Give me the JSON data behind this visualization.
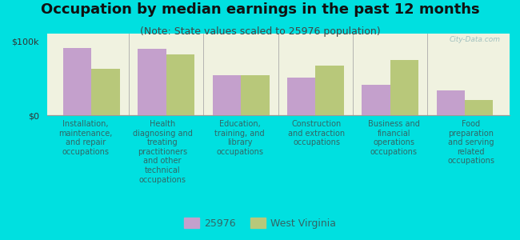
{
  "title": "Occupation by median earnings in the past 12 months",
  "subtitle": "(Note: State values scaled to 25976 population)",
  "background_color": "#00e0e0",
  "plot_bg_color": "#f0f2e0",
  "categories": [
    "Installation,\nmaintenance,\nand repair\noccupations",
    "Health\ndiagnosing and\ntreating\npractitioners\nand other\ntechnical\noccupations",
    "Education,\ntraining, and\nlibrary\noccupations",
    "Construction\nand extraction\noccupations",
    "Business and\nfinancial\noperations\noccupations",
    "Food\npreparation\nand serving\nrelated\noccupations"
  ],
  "values_25976": [
    91000,
    90000,
    54000,
    51000,
    41000,
    33000
  ],
  "values_wv": [
    63000,
    82000,
    54000,
    67000,
    74000,
    20000
  ],
  "ylim": [
    0,
    110000
  ],
  "yticks": [
    0,
    100000
  ],
  "ytick_labels": [
    "$0",
    "$100k"
  ],
  "color_25976": "#c4a0cc",
  "color_wv": "#b8c87a",
  "legend_label_25976": "25976",
  "legend_label_wv": "West Virginia",
  "watermark": "City-Data.com",
  "bar_width": 0.38,
  "title_fontsize": 13,
  "subtitle_fontsize": 9,
  "label_fontsize": 7,
  "legend_fontsize": 9,
  "text_color": "#336666"
}
